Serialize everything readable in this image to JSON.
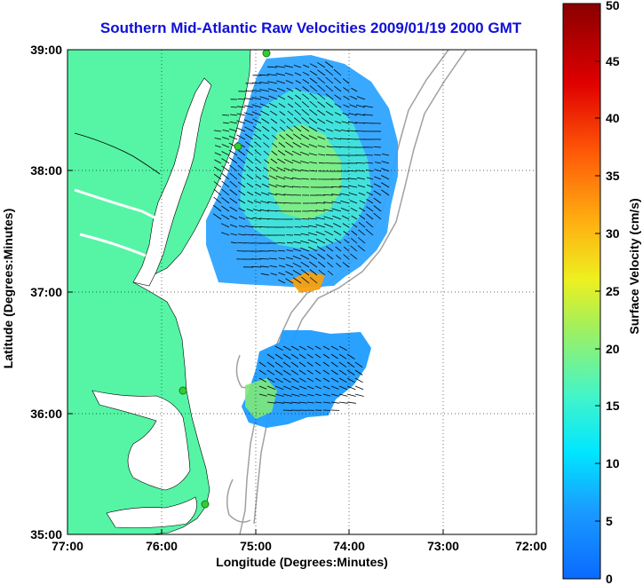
{
  "title": "Southern Mid-Atlantic Raw Velocities 2009/01/19 2000 GMT",
  "map": {
    "xlabel": "Longitude (Degrees:Minutes)",
    "ylabel": "Latitude (Degrees:Minutes)",
    "x_ticks": [
      "77:00",
      "76:00",
      "75:00",
      "74:00",
      "73:00",
      "72:00"
    ],
    "y_ticks": [
      "39:00",
      "38:00",
      "37:00",
      "36:00",
      "35:00"
    ],
    "lon_range": [
      -77,
      -72
    ],
    "lat_range": [
      35,
      39
    ],
    "grid": "dotted",
    "colors": {
      "land": "#55f5a5",
      "water": "#ffffff",
      "bathymetry": "#a0a0a0",
      "arrows": "#000000",
      "stations": "#33cc33"
    }
  },
  "colorbar": {
    "label": "Surface Velocity (cm/s)",
    "ticks": [
      "0",
      "5",
      "10",
      "15",
      "20",
      "25",
      "30",
      "35",
      "40",
      "45",
      "50"
    ],
    "range": [
      0,
      50
    ],
    "colormap": "jet"
  }
}
